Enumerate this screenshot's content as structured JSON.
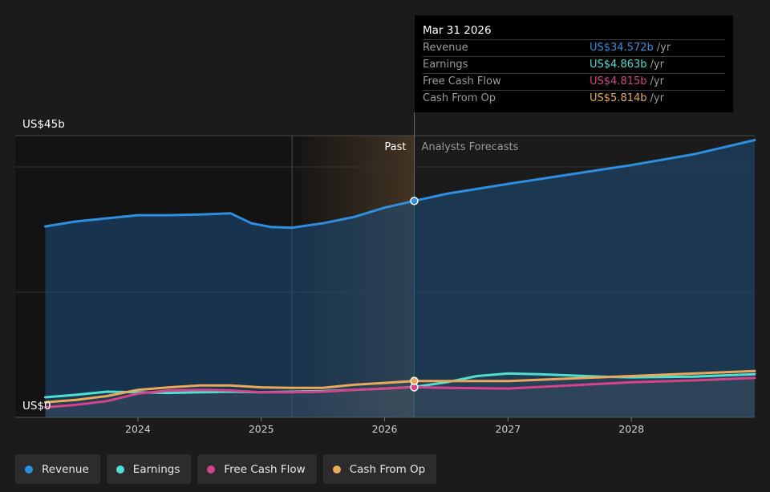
{
  "chart_data": {
    "type": "line",
    "y_axis_labels": [
      "US$45b",
      "US$0"
    ],
    "ylim": [
      0,
      45
    ],
    "x_ticks": [
      "2024",
      "2025",
      "2026",
      "2027",
      "2028"
    ],
    "region_labels": {
      "past": "Past",
      "forecast": "Analysts Forecasts"
    },
    "highlight_date": "Mar 31 2026",
    "series": [
      {
        "name": "Revenue",
        "color": "#2e8fe0",
        "points": [
          [
            2023.25,
            30.5
          ],
          [
            2023.5,
            31.3
          ],
          [
            2023.75,
            31.8
          ],
          [
            2024.0,
            32.3
          ],
          [
            2024.25,
            32.3
          ],
          [
            2024.5,
            32.4
          ],
          [
            2024.75,
            32.6
          ],
          [
            2024.92,
            31.0
          ],
          [
            2025.08,
            30.4
          ],
          [
            2025.25,
            30.3
          ],
          [
            2025.5,
            31.0
          ],
          [
            2025.75,
            32.0
          ],
          [
            2026.0,
            33.5
          ],
          [
            2026.24,
            34.572
          ],
          [
            2026.5,
            35.7
          ],
          [
            2027.0,
            37.3
          ],
          [
            2027.5,
            38.8
          ],
          [
            2028.0,
            40.3
          ],
          [
            2028.5,
            42.0
          ],
          [
            2029.0,
            44.3
          ]
        ]
      },
      {
        "name": "Earnings",
        "color": "#4fdfd0",
        "points": [
          [
            2023.25,
            3.2
          ],
          [
            2023.5,
            3.6
          ],
          [
            2023.75,
            4.1
          ],
          [
            2024.0,
            4.0
          ],
          [
            2024.25,
            3.9
          ],
          [
            2024.5,
            4.0
          ],
          [
            2024.75,
            4.1
          ],
          [
            2025.0,
            4.0
          ],
          [
            2025.25,
            4.1
          ],
          [
            2025.5,
            4.2
          ],
          [
            2025.75,
            4.4
          ],
          [
            2026.0,
            4.6
          ],
          [
            2026.24,
            4.863
          ],
          [
            2026.5,
            5.6
          ],
          [
            2026.75,
            6.6
          ],
          [
            2027.0,
            7.0
          ],
          [
            2027.25,
            6.9
          ],
          [
            2027.5,
            6.7
          ],
          [
            2027.75,
            6.5
          ],
          [
            2028.0,
            6.4
          ],
          [
            2028.5,
            6.5
          ],
          [
            2029.0,
            6.9
          ]
        ]
      },
      {
        "name": "Free Cash Flow",
        "color": "#d6438a",
        "points": [
          [
            2023.25,
            1.6
          ],
          [
            2023.5,
            2.0
          ],
          [
            2023.75,
            2.6
          ],
          [
            2024.0,
            3.8
          ],
          [
            2024.25,
            4.3
          ],
          [
            2024.5,
            4.4
          ],
          [
            2024.75,
            4.3
          ],
          [
            2025.0,
            4.0
          ],
          [
            2025.25,
            4.0
          ],
          [
            2025.5,
            4.1
          ],
          [
            2025.75,
            4.4
          ],
          [
            2026.0,
            4.6
          ],
          [
            2026.24,
            4.815
          ],
          [
            2026.5,
            4.7
          ],
          [
            2027.0,
            4.6
          ],
          [
            2027.5,
            5.1
          ],
          [
            2028.0,
            5.6
          ],
          [
            2028.5,
            5.9
          ],
          [
            2029.0,
            6.3
          ]
        ]
      },
      {
        "name": "Cash From Op",
        "color": "#e9a95a",
        "points": [
          [
            2023.25,
            2.4
          ],
          [
            2023.5,
            2.8
          ],
          [
            2023.75,
            3.4
          ],
          [
            2024.0,
            4.4
          ],
          [
            2024.25,
            4.8
          ],
          [
            2024.5,
            5.1
          ],
          [
            2024.75,
            5.1
          ],
          [
            2025.0,
            4.8
          ],
          [
            2025.25,
            4.7
          ],
          [
            2025.5,
            4.7
          ],
          [
            2025.75,
            5.2
          ],
          [
            2026.0,
            5.5
          ],
          [
            2026.24,
            5.814
          ],
          [
            2026.5,
            5.8
          ],
          [
            2027.0,
            5.8
          ],
          [
            2027.5,
            6.2
          ],
          [
            2028.0,
            6.6
          ],
          [
            2028.5,
            7.0
          ],
          [
            2029.0,
            7.4
          ]
        ]
      }
    ]
  },
  "tooltip": {
    "date": "Mar 31 2026",
    "rows": [
      {
        "label": "Revenue",
        "value": "US$34.572b",
        "unit": "/yr",
        "color": "#2e8fe0"
      },
      {
        "label": "Earnings",
        "value": "US$4.863b",
        "unit": "/yr",
        "color": "#4fdfd0"
      },
      {
        "label": "Free Cash Flow",
        "value": "US$4.815b",
        "unit": "/yr",
        "color": "#d6438a"
      },
      {
        "label": "Cash From Op",
        "value": "US$5.814b",
        "unit": "/yr",
        "color": "#e9a95a"
      }
    ]
  },
  "legend": [
    {
      "label": "Revenue",
      "color": "#2e8fe0"
    },
    {
      "label": "Earnings",
      "color": "#4fdfd0"
    },
    {
      "label": "Free Cash Flow",
      "color": "#d6438a"
    },
    {
      "label": "Cash From Op",
      "color": "#e9a95a"
    }
  ]
}
